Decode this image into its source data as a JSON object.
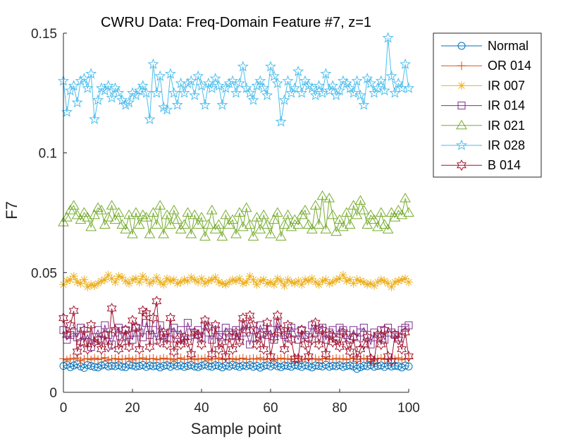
{
  "chart_data": {
    "type": "line",
    "title": "CWRU Data: Freq-Domain Feature #7, z=1",
    "xlabel": "Sample point",
    "ylabel": "F7",
    "xlim": [
      0,
      100
    ],
    "ylim": [
      0,
      0.15
    ],
    "xticks": [
      0,
      20,
      40,
      60,
      80,
      100
    ],
    "yticks": [
      0,
      0.05,
      0.1,
      0.15
    ],
    "xtick_labels": [
      "0",
      "20",
      "40",
      "60",
      "80",
      "100"
    ],
    "ytick_labels": [
      "0",
      "0.05",
      "0.1",
      "0.15"
    ],
    "grid": false,
    "legend_position": "outside-top-right",
    "x": [
      0,
      1,
      2,
      3,
      4,
      5,
      6,
      7,
      8,
      9,
      10,
      11,
      12,
      13,
      14,
      15,
      16,
      17,
      18,
      19,
      20,
      21,
      22,
      23,
      24,
      25,
      26,
      27,
      28,
      29,
      30,
      31,
      32,
      33,
      34,
      35,
      36,
      37,
      38,
      39,
      40,
      41,
      42,
      43,
      44,
      45,
      46,
      47,
      48,
      49,
      50,
      51,
      52,
      53,
      54,
      55,
      56,
      57,
      58,
      59,
      60,
      61,
      62,
      63,
      64,
      65,
      66,
      67,
      68,
      69,
      70,
      71,
      72,
      73,
      74,
      75,
      76,
      77,
      78,
      79,
      80,
      81,
      82,
      83,
      84,
      85,
      86,
      87,
      88,
      89,
      90,
      91,
      92,
      93,
      94,
      95,
      96,
      97,
      98,
      99,
      100
    ],
    "series": [
      {
        "name": "Normal",
        "color": "#0072BD",
        "marker": "circle",
        "values": [
          0.011,
          0.0115,
          0.0105,
          0.0112,
          0.0118,
          0.0108,
          0.0102,
          0.0114,
          0.011,
          0.0106,
          0.0104,
          0.0112,
          0.0116,
          0.0108,
          0.0111,
          0.0109,
          0.0113,
          0.0107,
          0.0105,
          0.0115,
          0.0112,
          0.0108,
          0.011,
          0.0114,
          0.0106,
          0.0112,
          0.0109,
          0.0111,
          0.0104,
          0.011,
          0.0113,
          0.0107,
          0.0115,
          0.0109,
          0.0112,
          0.0106,
          0.011,
          0.0114,
          0.0108,
          0.0105,
          0.0111,
          0.0116,
          0.0109,
          0.0107,
          0.0113,
          0.011,
          0.0104,
          0.0112,
          0.0108,
          0.0115,
          0.011,
          0.0106,
          0.0112,
          0.0109,
          0.0114,
          0.0107,
          0.0111,
          0.0103,
          0.011,
          0.0113,
          0.0108,
          0.0116,
          0.0109,
          0.0105,
          0.0112,
          0.011,
          0.0107,
          0.0114,
          0.0111,
          0.0106,
          0.0113,
          0.0109,
          0.0104,
          0.0112,
          0.011,
          0.0108,
          0.0115,
          0.0107,
          0.0111,
          0.0109,
          0.0113,
          0.0106,
          0.011,
          0.0112,
          0.0108,
          0.0098,
          0.0105,
          0.0111,
          0.0109,
          0.0114,
          0.0107,
          0.011,
          0.0112,
          0.0106,
          0.0113,
          0.0108,
          0.0111,
          0.0109,
          0.0104,
          0.0112,
          0.0108
        ]
      },
      {
        "name": "OR 014",
        "color": "#D95319",
        "marker": "plus",
        "values": [
          0.014,
          0.0135,
          0.0142,
          0.0138,
          0.0144,
          0.0132,
          0.0139,
          0.0141,
          0.0136,
          0.0143,
          0.0137,
          0.014,
          0.0145,
          0.0134,
          0.0139,
          0.0142,
          0.0136,
          0.014,
          0.0138,
          0.0143,
          0.0135,
          0.0141,
          0.0139,
          0.0144,
          0.0137,
          0.014,
          0.0142,
          0.0136,
          0.0139,
          0.0143,
          0.0138,
          0.0141,
          0.0135,
          0.014,
          0.0144,
          0.0137,
          0.0139,
          0.0142,
          0.0136,
          0.0141,
          0.0138,
          0.0143,
          0.0135,
          0.014,
          0.0139,
          0.0144,
          0.0137,
          0.0141,
          0.0138,
          0.0142,
          0.0136,
          0.014,
          0.0143,
          0.0137,
          0.0139,
          0.0141,
          0.0138,
          0.0144,
          0.0136,
          0.014,
          0.0142,
          0.0135,
          0.0139,
          0.0143,
          0.0138,
          0.0141,
          0.0137,
          0.014,
          0.0144,
          0.0136,
          0.0139,
          0.0142,
          0.0138,
          0.0141,
          0.0135,
          0.014,
          0.0143,
          0.0137,
          0.0139,
          0.0142,
          0.0138,
          0.0141,
          0.0136,
          0.014,
          0.0144,
          0.0137,
          0.0139,
          0.0142,
          0.0138,
          0.0141,
          0.0135,
          0.014,
          0.0143,
          0.0137,
          0.0139,
          0.0141,
          0.0138,
          0.0144,
          0.0136,
          0.014,
          0.0142
        ]
      },
      {
        "name": "IR 007",
        "color": "#EDB120",
        "marker": "asterisk",
        "values": [
          0.045,
          0.0465,
          0.047,
          0.0485,
          0.046,
          0.0455,
          0.047,
          0.044,
          0.045,
          0.0445,
          0.0455,
          0.0465,
          0.047,
          0.049,
          0.0475,
          0.046,
          0.0485,
          0.048,
          0.0465,
          0.0455,
          0.047,
          0.0475,
          0.046,
          0.0485,
          0.047,
          0.0455,
          0.0465,
          0.048,
          0.046,
          0.045,
          0.0475,
          0.0465,
          0.047,
          0.0455,
          0.046,
          0.047,
          0.0465,
          0.048,
          0.047,
          0.046,
          0.0475,
          0.0455,
          0.0465,
          0.047,
          0.048,
          0.046,
          0.0455,
          0.045,
          0.046,
          0.047,
          0.0465,
          0.0475,
          0.0455,
          0.046,
          0.0485,
          0.047,
          0.045,
          0.0465,
          0.047,
          0.0455,
          0.046,
          0.045,
          0.0475,
          0.0465,
          0.0445,
          0.047,
          0.046,
          0.0455,
          0.0465,
          0.045,
          0.047,
          0.0465,
          0.0475,
          0.046,
          0.045,
          0.0465,
          0.047,
          0.0455,
          0.046,
          0.047,
          0.0475,
          0.049,
          0.0465,
          0.047,
          0.0455,
          0.047,
          0.0465,
          0.046,
          0.045,
          0.0455,
          0.0445,
          0.046,
          0.047,
          0.0465,
          0.0455,
          0.044,
          0.046,
          0.0465,
          0.047,
          0.0475,
          0.046
        ]
      },
      {
        "name": "IR 014",
        "color": "#7E2F8E",
        "marker": "square",
        "values": [
          0.026,
          0.022,
          0.024,
          0.025,
          0.023,
          0.027,
          0.021,
          0.024,
          0.019,
          0.023,
          0.026,
          0.022,
          0.028,
          0.024,
          0.02,
          0.025,
          0.027,
          0.023,
          0.026,
          0.024,
          0.022,
          0.027,
          0.025,
          0.023,
          0.029,
          0.024,
          0.026,
          0.022,
          0.028,
          0.024,
          0.023,
          0.025,
          0.027,
          0.024,
          0.026,
          0.022,
          0.029,
          0.025,
          0.024,
          0.026,
          0.023,
          0.028,
          0.025,
          0.022,
          0.026,
          0.024,
          0.023,
          0.027,
          0.025,
          0.024,
          0.026,
          0.022,
          0.028,
          0.025,
          0.02,
          0.026,
          0.023,
          0.028,
          0.025,
          0.024,
          0.026,
          0.022,
          0.029,
          0.025,
          0.024,
          0.023,
          0.027,
          0.025,
          0.022,
          0.026,
          0.024,
          0.023,
          0.028,
          0.025,
          0.026,
          0.027,
          0.022,
          0.025,
          0.026,
          0.023,
          0.027,
          0.026,
          0.024,
          0.022,
          0.026,
          0.023,
          0.025,
          0.027,
          0.024,
          0.02,
          0.025,
          0.023,
          0.026,
          0.022,
          0.027,
          0.025,
          0.024,
          0.023,
          0.026,
          0.027,
          0.028
        ]
      },
      {
        "name": "IR 021",
        "color": "#77AC30",
        "marker": "triangle",
        "values": [
          0.071,
          0.073,
          0.076,
          0.078,
          0.074,
          0.072,
          0.075,
          0.073,
          0.069,
          0.074,
          0.077,
          0.076,
          0.07,
          0.073,
          0.078,
          0.072,
          0.075,
          0.07,
          0.068,
          0.074,
          0.066,
          0.075,
          0.07,
          0.074,
          0.073,
          0.066,
          0.075,
          0.07,
          0.078,
          0.066,
          0.074,
          0.07,
          0.076,
          0.072,
          0.068,
          0.07,
          0.075,
          0.066,
          0.074,
          0.07,
          0.073,
          0.065,
          0.07,
          0.076,
          0.068,
          0.07,
          0.065,
          0.074,
          0.07,
          0.072,
          0.066,
          0.075,
          0.069,
          0.077,
          0.07,
          0.065,
          0.073,
          0.068,
          0.074,
          0.07,
          0.066,
          0.072,
          0.075,
          0.065,
          0.07,
          0.074,
          0.069,
          0.072,
          0.07,
          0.074,
          0.076,
          0.07,
          0.068,
          0.078,
          0.07,
          0.082,
          0.068,
          0.081,
          0.074,
          0.067,
          0.072,
          0.069,
          0.075,
          0.07,
          0.078,
          0.074,
          0.08,
          0.076,
          0.07,
          0.074,
          0.072,
          0.069,
          0.075,
          0.07,
          0.068,
          0.075,
          0.073,
          0.076,
          0.074,
          0.081,
          0.075
        ]
      },
      {
        "name": "IR 028",
        "color": "#4DBEEE",
        "marker": "pentagram",
        "values": [
          0.13,
          0.117,
          0.126,
          0.128,
          0.121,
          0.13,
          0.131,
          0.127,
          0.133,
          0.114,
          0.122,
          0.127,
          0.126,
          0.128,
          0.123,
          0.127,
          0.125,
          0.122,
          0.12,
          0.121,
          0.125,
          0.124,
          0.126,
          0.128,
          0.125,
          0.114,
          0.137,
          0.125,
          0.132,
          0.119,
          0.118,
          0.133,
          0.125,
          0.12,
          0.129,
          0.125,
          0.129,
          0.13,
          0.124,
          0.132,
          0.128,
          0.12,
          0.129,
          0.127,
          0.131,
          0.128,
          0.12,
          0.127,
          0.129,
          0.13,
          0.125,
          0.129,
          0.136,
          0.127,
          0.125,
          0.122,
          0.128,
          0.13,
          0.127,
          0.124,
          0.136,
          0.132,
          0.129,
          0.113,
          0.122,
          0.13,
          0.125,
          0.127,
          0.134,
          0.125,
          0.13,
          0.128,
          0.127,
          0.124,
          0.128,
          0.125,
          0.133,
          0.126,
          0.128,
          0.124,
          0.126,
          0.13,
          0.129,
          0.127,
          0.125,
          0.13,
          0.124,
          0.12,
          0.131,
          0.129,
          0.125,
          0.127,
          0.13,
          0.126,
          0.148,
          0.132,
          0.125,
          0.129,
          0.127,
          0.137,
          0.127
        ]
      },
      {
        "name": "B 014",
        "color": "#A2142F",
        "marker": "hexagram",
        "values": [
          0.031,
          0.024,
          0.028,
          0.034,
          0.017,
          0.021,
          0.026,
          0.018,
          0.028,
          0.021,
          0.022,
          0.018,
          0.024,
          0.019,
          0.035,
          0.026,
          0.018,
          0.021,
          0.026,
          0.019,
          0.03,
          0.027,
          0.018,
          0.034,
          0.033,
          0.019,
          0.031,
          0.038,
          0.021,
          0.025,
          0.02,
          0.031,
          0.017,
          0.022,
          0.02,
          0.023,
          0.021,
          0.016,
          0.025,
          0.024,
          0.02,
          0.03,
          0.027,
          0.016,
          0.028,
          0.018,
          0.021,
          0.015,
          0.023,
          0.018,
          0.025,
          0.021,
          0.031,
          0.026,
          0.032,
          0.028,
          0.02,
          0.024,
          0.018,
          0.029,
          0.015,
          0.023,
          0.032,
          0.026,
          0.018,
          0.028,
          0.022,
          0.014,
          0.014,
          0.026,
          0.02,
          0.015,
          0.022,
          0.029,
          0.02,
          0.026,
          0.016,
          0.024,
          0.021,
          0.022,
          0.019,
          0.025,
          0.02,
          0.017,
          0.023,
          0.014,
          0.018,
          0.02,
          0.023,
          0.014,
          0.013,
          0.024,
          0.02,
          0.026,
          0.015,
          0.013,
          0.024,
          0.022,
          0.018,
          0.025,
          0.015
        ]
      }
    ]
  }
}
